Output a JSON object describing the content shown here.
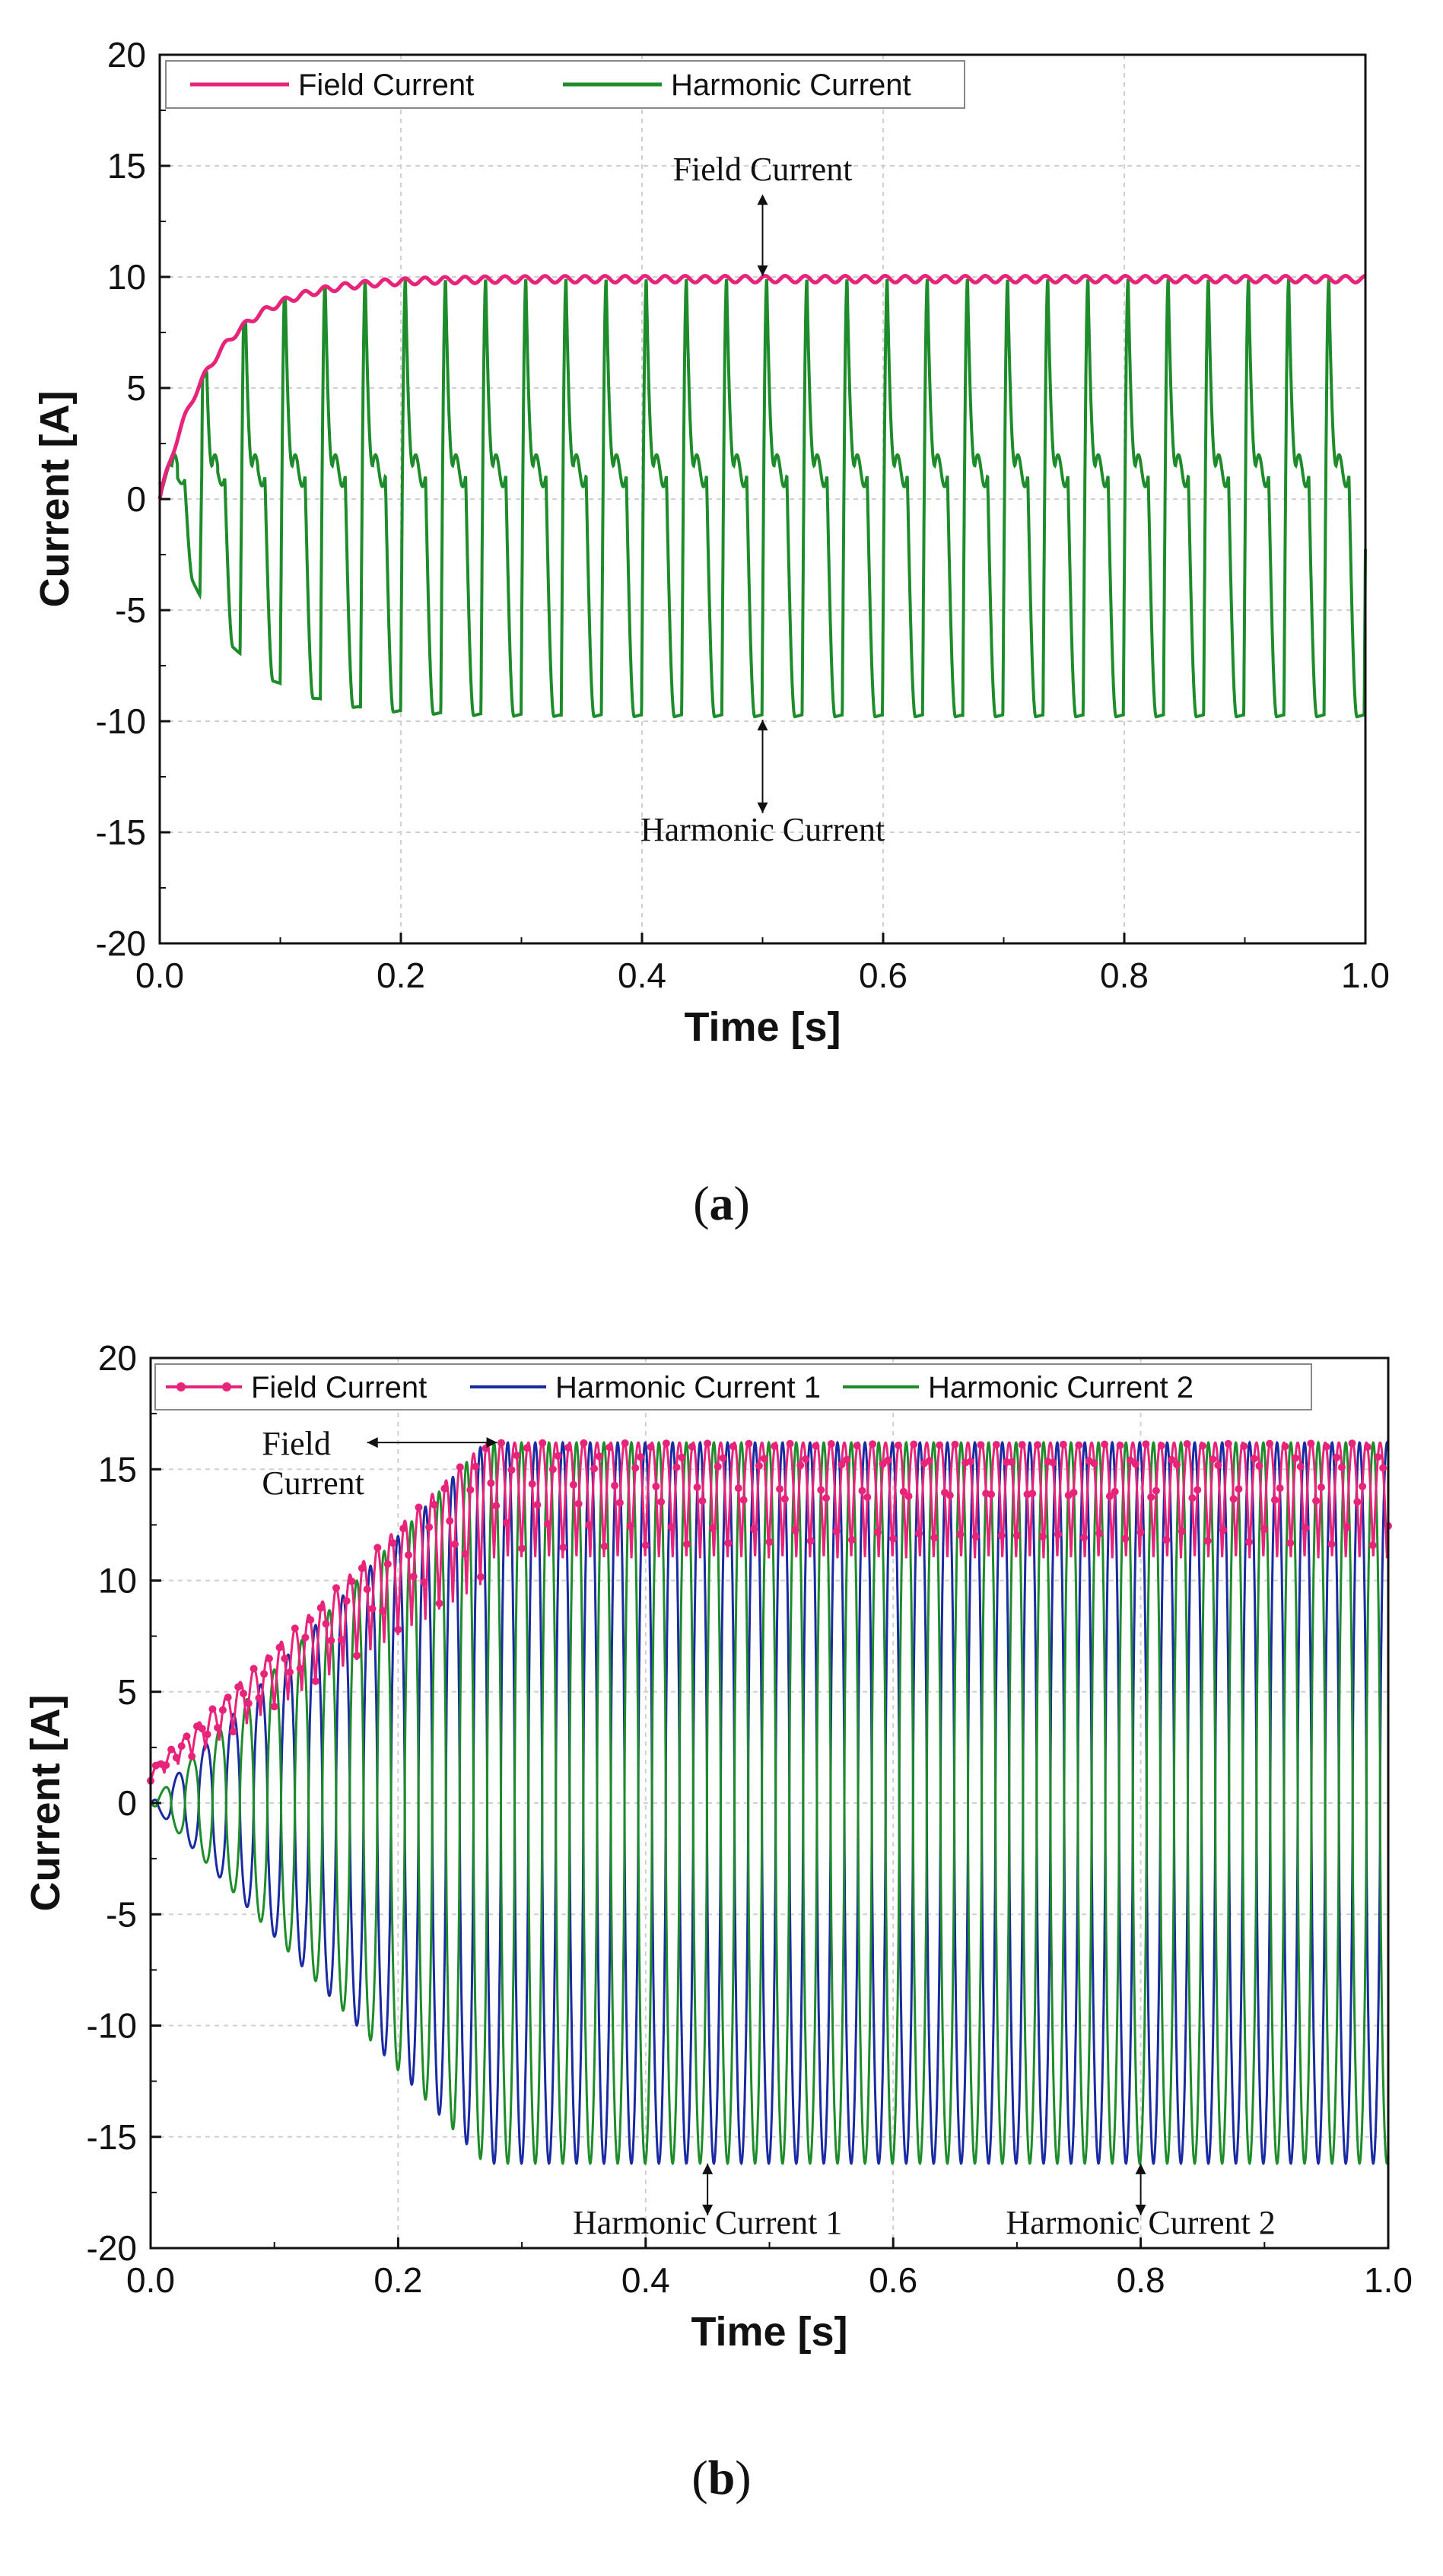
{
  "chart_data": [
    {
      "type": "line",
      "caption_letter": "a",
      "xlabel": "Time [s]",
      "ylabel": "Current [A]",
      "xlim": [
        0.0,
        1.0
      ],
      "ylim": [
        -20,
        20
      ],
      "xticks": [
        "0.0",
        "0.2",
        "0.4",
        "0.6",
        "0.8",
        "1.0"
      ],
      "yticks": [
        "20",
        "15",
        "10",
        "5",
        "0",
        "-5",
        "-10",
        "-15",
        "-20"
      ],
      "x_tick_values": [
        0.0,
        0.2,
        0.4,
        0.6,
        0.8,
        1.0
      ],
      "y_tick_values": [
        20,
        15,
        10,
        5,
        0,
        -5,
        -10,
        -15,
        -20
      ],
      "grid": true,
      "legend": [
        "Field Current",
        "Harmonic Current"
      ],
      "series": [
        {
          "name": "Field Current",
          "color": "#e8247a",
          "steady_value": 9.9,
          "ripple": 0.15,
          "rise_tau_s": 0.045,
          "description_values": {
            "t0": 0,
            "t0.05": 6.5,
            "t0.1": 9.0,
            "t0.2": 9.8,
            "t1.0": 9.9
          }
        },
        {
          "name": "Harmonic Current",
          "color": "#1e8c2a",
          "period_s": 0.0333,
          "max": 9.9,
          "min": -9.8,
          "plateau": 1.5,
          "settle_tau_s": 0.05
        }
      ],
      "annotations": [
        {
          "text": "Field Current",
          "x": 0.5,
          "y_text": 14,
          "y_arrow": 9.9
        },
        {
          "text": "Harmonic Current",
          "x": 0.5,
          "y_text": -14,
          "y_arrow": -9.8
        }
      ]
    },
    {
      "type": "line",
      "caption_letter": "b",
      "xlabel": "Time [s]",
      "ylabel": "Current [A]",
      "xlim": [
        0.0,
        1.0
      ],
      "ylim": [
        -20,
        20
      ],
      "xticks": [
        "0.0",
        "0.2",
        "0.4",
        "0.6",
        "0.8",
        "1.0"
      ],
      "yticks": [
        "20",
        "15",
        "10",
        "5",
        "0",
        "-5",
        "-10",
        "-15",
        "-20"
      ],
      "x_tick_values": [
        0.0,
        0.2,
        0.4,
        0.6,
        0.8,
        1.0
      ],
      "y_tick_values": [
        20,
        15,
        10,
        5,
        0,
        -5,
        -10,
        -15,
        -20
      ],
      "grid": true,
      "legend": [
        "Field Current",
        "Harmonic Current 1",
        "Harmonic Current 2"
      ],
      "series": [
        {
          "name": "Field Current",
          "color": "#e8247a",
          "marker": "circle",
          "upper_steady": 16.2,
          "lower_steady": 11.0,
          "ramp_end_s": 0.27
        },
        {
          "name": "Harmonic Current 1",
          "color": "#1a2aa0",
          "period_s": 0.0222,
          "max": 16.2,
          "min": -16.2,
          "ramp_end_s": 0.27
        },
        {
          "name": "Harmonic Current 2",
          "color": "#1e8c2a",
          "period_s": 0.0222,
          "phase_offset": 0.5,
          "max": 16.2,
          "min": -16.2,
          "ramp_end_s": 0.27
        }
      ],
      "annotations": [
        {
          "text": "Field",
          "text2": "Current",
          "x": 0.09,
          "y_text": 16.0,
          "arrow_to_x": 0.28,
          "arrow_y": 16.2
        },
        {
          "text": "Harmonic Current 1",
          "x": 0.45,
          "y_text": -18.8,
          "y_arrow": -16.2
        },
        {
          "text": "Harmonic Current 2",
          "x": 0.8,
          "y_text": -18.8,
          "y_arrow": -16.2
        }
      ]
    }
  ]
}
